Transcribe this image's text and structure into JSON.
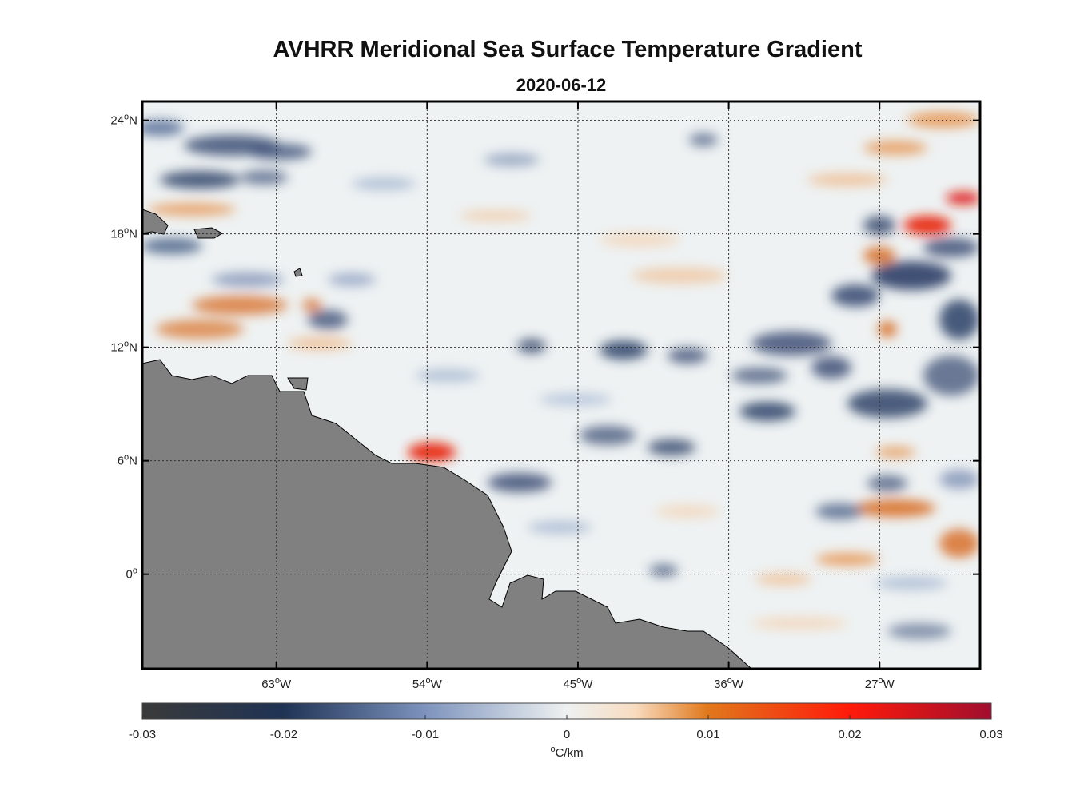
{
  "figure": {
    "title": "AVHRR Meridional Sea Surface Temperature Gradient",
    "subtitle": "2020-06-12"
  },
  "map": {
    "lon_range": [
      -71,
      -21
    ],
    "lat_range": [
      -5,
      25
    ],
    "lon_ticks": [
      {
        "value": -63,
        "deg": "63",
        "hemi": "W"
      },
      {
        "value": -54,
        "deg": "54",
        "hemi": "W"
      },
      {
        "value": -45,
        "deg": "45",
        "hemi": "W"
      },
      {
        "value": -36,
        "deg": "36",
        "hemi": "W"
      },
      {
        "value": -27,
        "deg": "27",
        "hemi": "W"
      }
    ],
    "lat_ticks": [
      {
        "value": 24,
        "deg": "24",
        "hemi": "N"
      },
      {
        "value": 18,
        "deg": "18",
        "hemi": "N"
      },
      {
        "value": 12,
        "deg": "12",
        "hemi": "N"
      },
      {
        "value": 6,
        "deg": "6",
        "hemi": "N"
      },
      {
        "value": 0,
        "deg": "0",
        "hemi": ""
      }
    ],
    "grid": true,
    "land_color": "#808080",
    "ocean_background": "#eef2f3"
  },
  "colorbar": {
    "range": [
      -0.03,
      0.03
    ],
    "ticks": [
      "-0.03",
      "-0.02",
      "-0.01",
      "0",
      "0.01",
      "0.02",
      "0.03"
    ],
    "unit_deg": "o",
    "unit": "C/km",
    "colors": [
      "#3a3a3a",
      "#1f3355",
      "#7d93bd",
      "#eef1f1",
      "#f8dcc0",
      "#e0781c",
      "#ff1a0a",
      "#a00e2e"
    ]
  }
}
